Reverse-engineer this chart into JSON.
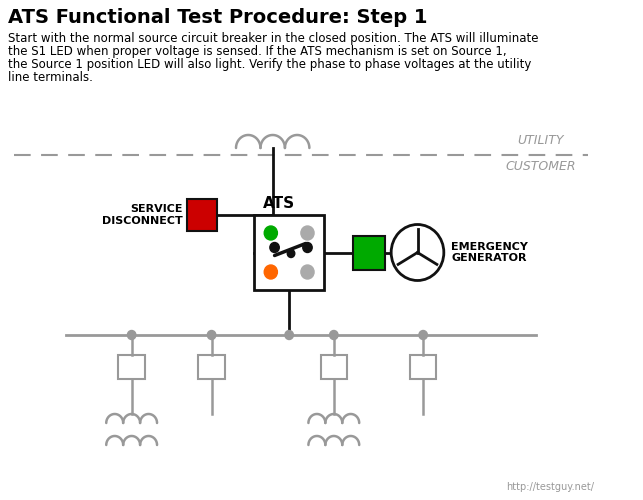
{
  "title": "ATS Functional Test Procedure: Step 1",
  "desc_lines": [
    "Start with the normal source circuit breaker in the closed position. The ATS will illuminate",
    "the S1 LED when proper voltage is sensed. If the ATS mechanism is set on Source 1,",
    "the Source 1 position LED will also light. Verify the phase to phase voltages at the utility",
    "line terminals."
  ],
  "utility_label": "UTILITY",
  "customer_label": "CUSTOMER",
  "service_disconnect_label": "SERVICE\nDISCONNECT",
  "ats_label": "ATS",
  "emergency_generator_label": "EMERGENCY\nGENERATOR",
  "watermark": "http://testguy.net/",
  "bg_color": "#ffffff",
  "line_color": "#999999",
  "dark_line": "#111111",
  "red_color": "#cc0000",
  "green_color": "#00aa00",
  "orange_color": "#ff6600",
  "gray_dot": "#aaaaaa",
  "title_fontsize": 14,
  "desc_fontsize": 8.5,
  "label_fontsize": 8,
  "utility_fontsize": 9,
  "ats_fontsize": 11,
  "emgen_fontsize": 8
}
